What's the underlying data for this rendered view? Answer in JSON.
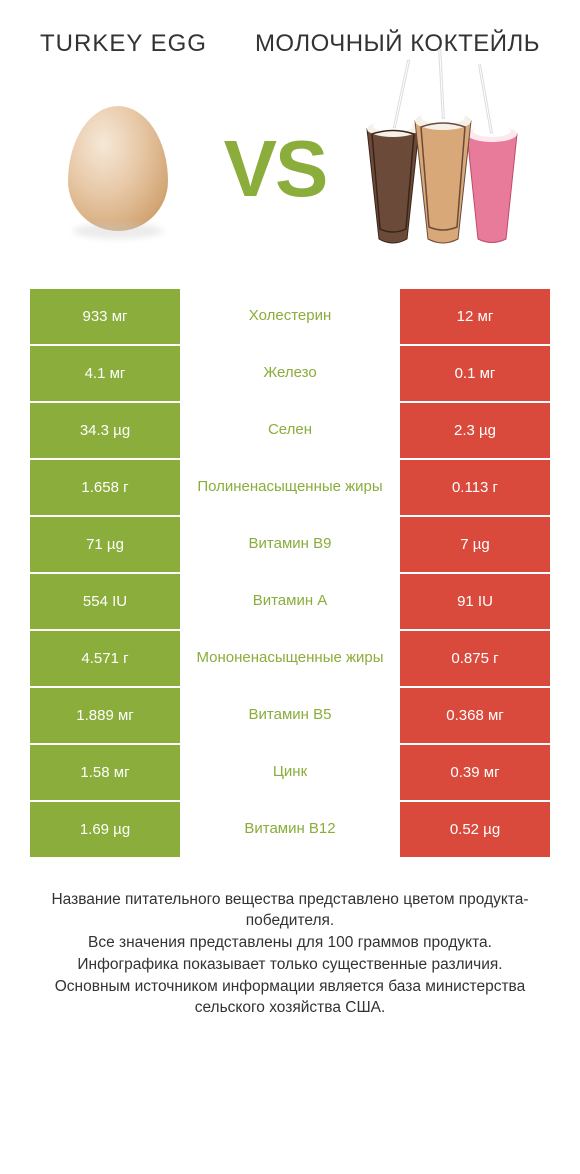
{
  "header": {
    "left_title": "TURKEY EGG",
    "right_title": "МОЛОЧНЫЙ КОКТЕЙЛЬ",
    "vs_label": "VS"
  },
  "colors": {
    "winner_left": "#8aad3b",
    "winner_right": "#d94a3d",
    "text_body": "#333333",
    "background": "#ffffff"
  },
  "table": {
    "rows": [
      {
        "left": "933 мг",
        "label": "Холестерин",
        "right": "12 мг",
        "winner": "left"
      },
      {
        "left": "4.1 мг",
        "label": "Железо",
        "right": "0.1 мг",
        "winner": "left"
      },
      {
        "left": "34.3 µg",
        "label": "Селен",
        "right": "2.3 µg",
        "winner": "left"
      },
      {
        "left": "1.658 г",
        "label": "Полиненасыщенные жиры",
        "right": "0.113 г",
        "winner": "left"
      },
      {
        "left": "71 µg",
        "label": "Витамин B9",
        "right": "7 µg",
        "winner": "left"
      },
      {
        "left": "554 IU",
        "label": "Витамин A",
        "right": "91 IU",
        "winner": "left"
      },
      {
        "left": "4.571 г",
        "label": "Мононенасыщенные жиры",
        "right": "0.875 г",
        "winner": "left"
      },
      {
        "left": "1.889 мг",
        "label": "Витамин B5",
        "right": "0.368 мг",
        "winner": "left"
      },
      {
        "left": "1.58 мг",
        "label": "Цинк",
        "right": "0.39 мг",
        "winner": "left"
      },
      {
        "left": "1.69 µg",
        "label": "Витамин B12",
        "right": "0.52 µg",
        "winner": "left"
      }
    ]
  },
  "footer": {
    "line1": "Название питательного вещества представлено цветом продукта-победителя.",
    "line2": "Все значения представлены для 100 граммов продукта.",
    "line3": "Инфографика показывает только существенные различия.",
    "line4": "Основным источником информации является база министерства сельского хозяйства США."
  }
}
